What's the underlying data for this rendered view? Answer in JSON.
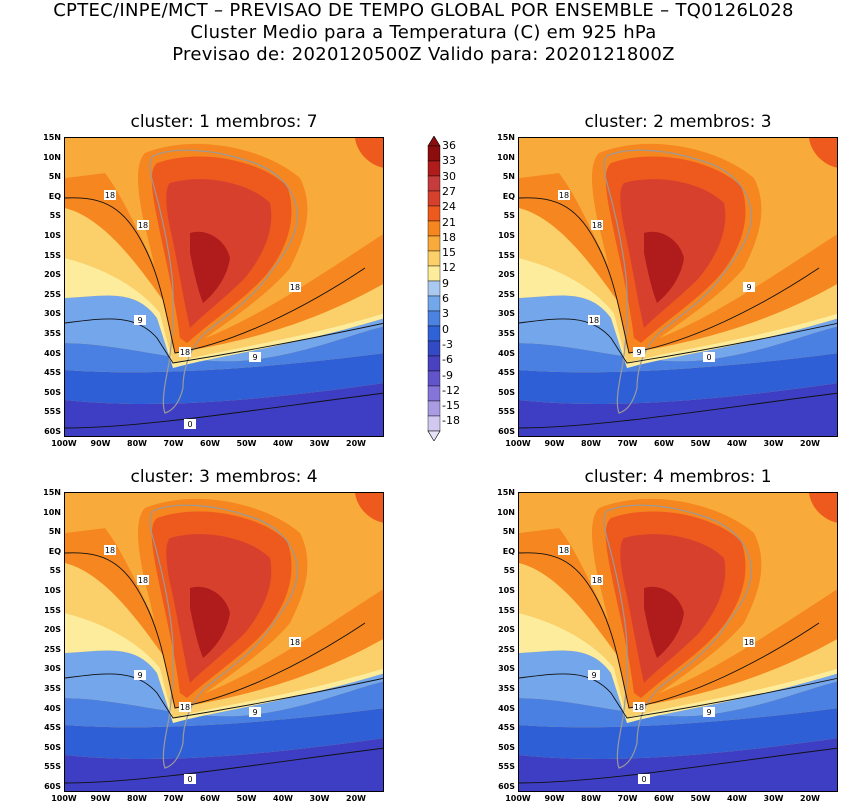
{
  "header": {
    "line1": "CPTEC/INPE/MCT – PREVISAO DE TEMPO GLOBAL POR ENSEMBLE – TQ0126L028",
    "line2": "Cluster Medio para a Temperatura (C) em 925 hPa",
    "line3": "Previsao de: 2020120500Z    Valido para: 2020121800Z"
  },
  "lat_labels": [
    "15N",
    "10N",
    "5N",
    "EQ",
    "5S",
    "10S",
    "15S",
    "20S",
    "25S",
    "30S",
    "35S",
    "40S",
    "45S",
    "50S",
    "55S",
    "60S"
  ],
  "lon_labels": [
    "100W",
    "90W",
    "80W",
    "70W",
    "60W",
    "50W",
    "40W",
    "30W",
    "20W"
  ],
  "colorbar": {
    "labels": [
      "36",
      "33",
      "30",
      "27",
      "24",
      "21",
      "18",
      "15",
      "12",
      "9",
      "6",
      "3",
      "0",
      "-3",
      "-6",
      "-9",
      "-12",
      "-15",
      "-18"
    ],
    "colors": [
      "#8c0d0d",
      "#b01c1c",
      "#c63b3b",
      "#d8402e",
      "#ee5a1e",
      "#f6861f",
      "#f8ab3a",
      "#fbd06a",
      "#fcec9c",
      "#a9c9f1",
      "#72a7ec",
      "#4c83e3",
      "#2f62d6",
      "#3449c4",
      "#4941c0",
      "#6254ca",
      "#8675d8",
      "#aa9ce3",
      "#d2c9f0"
    ]
  },
  "panels": [
    {
      "title": "cluster: 1   membros: 7",
      "contour_labels": [
        "18",
        "18",
        "18",
        "9",
        "18",
        "9",
        "0"
      ]
    },
    {
      "title": "cluster: 2   membros: 3",
      "contour_labels": [
        "18",
        "18",
        "9",
        "18",
        "9",
        "0"
      ]
    },
    {
      "title": "cluster: 3   membros: 4",
      "contour_labels": [
        "18",
        "18",
        "18",
        "9",
        "18",
        "9",
        "0"
      ]
    },
    {
      "title": "cluster: 4   membros: 1",
      "contour_labels": [
        "18",
        "18",
        "18",
        "9",
        "18",
        "9",
        "0"
      ]
    }
  ]
}
